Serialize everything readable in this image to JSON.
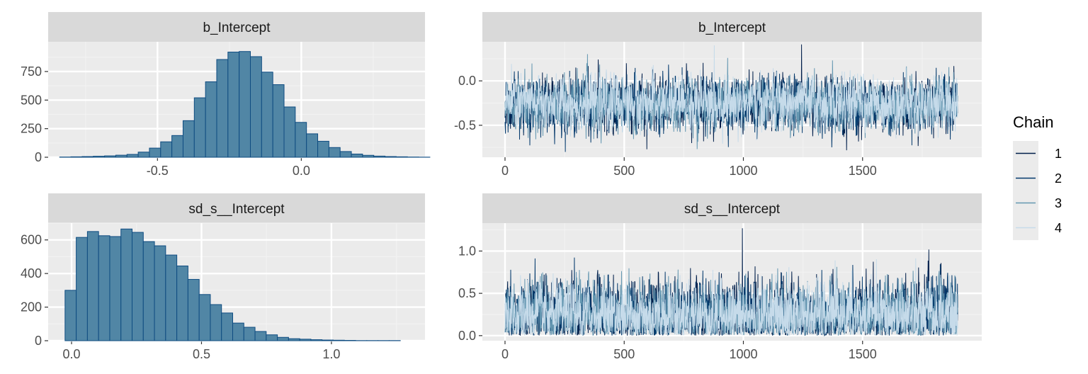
{
  "colors": {
    "panel_background": "#ebebeb",
    "strip_background": "#d9d9d9",
    "grid_major": "#ffffff",
    "grid_minor": "#f2f2f2",
    "hist_fill": "#5186a5",
    "hist_outline": "#0f4c81",
    "chain_colors": [
      "#011f4b",
      "#03396c",
      "#6497b1",
      "#c6dbea"
    ]
  },
  "legend": {
    "title": "Chain",
    "entries": [
      "1",
      "2",
      "3",
      "4"
    ],
    "placement": "right"
  },
  "chart_data": [
    {
      "type": "bar",
      "subtype": "histogram",
      "strip_title": "b_Intercept",
      "xlim": [
        -0.88,
        0.43
      ],
      "ylim": [
        0,
        1010
      ],
      "x_ticks": [
        -0.5,
        0.0
      ],
      "x_tick_labels": [
        "-0.5",
        "0.0"
      ],
      "y_ticks": [
        0,
        250,
        500,
        750
      ],
      "y_tick_labels": [
        "0",
        "250",
        "500",
        "750"
      ],
      "bin_start": -0.84,
      "bin_width": 0.039,
      "values": [
        2,
        4,
        6,
        9,
        12,
        18,
        25,
        45,
        80,
        135,
        190,
        320,
        520,
        660,
        855,
        920,
        925,
        880,
        745,
        635,
        440,
        305,
        205,
        140,
        85,
        50,
        28,
        17,
        10,
        6,
        4,
        2,
        1
      ]
    },
    {
      "type": "line",
      "subtype": "trace",
      "strip_title": "b_Intercept",
      "xlim": [
        -95,
        2000
      ],
      "ylim": [
        -0.86,
        0.44
      ],
      "x_ticks": [
        0,
        500,
        1000,
        1500
      ],
      "x_tick_labels": [
        "0",
        "500",
        "1000",
        "1500"
      ],
      "y_ticks": [
        -0.5,
        0.0
      ],
      "y_tick_labels": [
        "-0.5",
        "0.0"
      ],
      "iterations": 1900,
      "chain_means": [
        -0.27,
        -0.26,
        -0.27,
        -0.25
      ],
      "chain_sd": 0.14,
      "observed_max": 0.41,
      "observed_min": -0.82,
      "series": [
        {
          "name": "1"
        },
        {
          "name": "2"
        },
        {
          "name": "3"
        },
        {
          "name": "4"
        }
      ]
    },
    {
      "type": "bar",
      "subtype": "histogram",
      "strip_title": "sd_s__Intercept",
      "xlim": [
        -0.09,
        1.36
      ],
      "ylim": [
        0,
        700
      ],
      "x_ticks": [
        0.0,
        0.5,
        1.0
      ],
      "x_tick_labels": [
        "0.0",
        "0.5",
        "1.0"
      ],
      "y_ticks": [
        0,
        200,
        400,
        600
      ],
      "y_tick_labels": [
        "0",
        "200",
        "400",
        "600"
      ],
      "bin_start": -0.025,
      "bin_width": 0.043,
      "values": [
        300,
        615,
        650,
        625,
        620,
        665,
        645,
        590,
        565,
        510,
        445,
        365,
        275,
        215,
        165,
        105,
        80,
        55,
        35,
        20,
        12,
        9,
        6,
        4,
        3,
        2,
        1,
        1,
        1,
        1
      ]
    },
    {
      "type": "line",
      "subtype": "trace",
      "strip_title": "sd_s__Intercept",
      "xlim": [
        -95,
        2000
      ],
      "ylim": [
        -0.06,
        1.33
      ],
      "x_ticks": [
        0,
        500,
        1000,
        1500
      ],
      "x_tick_labels": [
        "0",
        "500",
        "1000",
        "1500"
      ],
      "y_ticks": [
        0.0,
        0.5,
        1.0
      ],
      "y_tick_labels": [
        "0.0",
        "0.5",
        "1.0"
      ],
      "iterations": 1900,
      "chain_means": [
        0.29,
        0.28,
        0.28,
        0.27
      ],
      "chain_sd": 0.2,
      "observed_max": 1.27,
      "observed_min": 0.0,
      "series": [
        {
          "name": "1"
        },
        {
          "name": "2"
        },
        {
          "name": "3"
        },
        {
          "name": "4"
        }
      ]
    }
  ]
}
